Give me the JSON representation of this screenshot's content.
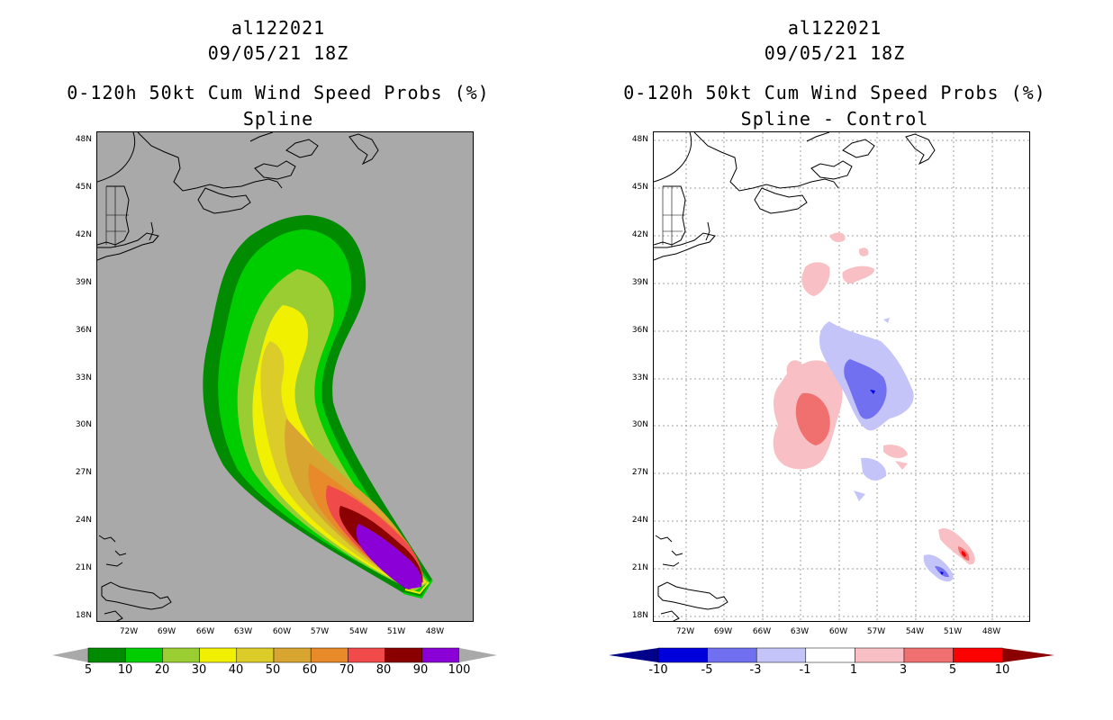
{
  "colors": {
    "land_gray": "#a9a9a9",
    "coast": "#000000",
    "grid": "#a0a0a0"
  },
  "left": {
    "storm_id": "al122021",
    "date": "09/05/21 18Z",
    "title": "0-120h 50kt Cum Wind Speed Probs (%)",
    "subtitle": "Spline",
    "colorbar": {
      "labels": [
        "5",
        "10",
        "20",
        "30",
        "40",
        "50",
        "60",
        "70",
        "80",
        "90",
        "100"
      ],
      "colors": [
        "#008b00",
        "#00cd00",
        "#9acd32",
        "#f0f000",
        "#dccc2a",
        "#d9a531",
        "#e8892a",
        "#f04a4a",
        "#8b0000",
        "#8a00d6"
      ]
    }
  },
  "right": {
    "storm_id": "al122021",
    "date": "09/05/21 18Z",
    "title": "0-120h 50kt Cum Wind Speed Probs (%)",
    "subtitle": "Spline - Control",
    "colorbar": {
      "labels": [
        "-10",
        "-5",
        "-3",
        "-1",
        "1",
        "3",
        "5",
        "10"
      ],
      "colors": [
        "#0000dd",
        "#7070f0",
        "#c4c4f8",
        "#ffffff",
        "#f8c0c4",
        "#f07070",
        "#ff0000"
      ]
    }
  },
  "axes": {
    "lat_labels": [
      "48N",
      "45N",
      "42N",
      "39N",
      "36N",
      "33N",
      "30N",
      "27N",
      "24N",
      "21N",
      "18N"
    ],
    "lon_labels": [
      "72W",
      "69W",
      "66W",
      "63W",
      "60W",
      "57W",
      "54W",
      "51W",
      "48W"
    ]
  }
}
